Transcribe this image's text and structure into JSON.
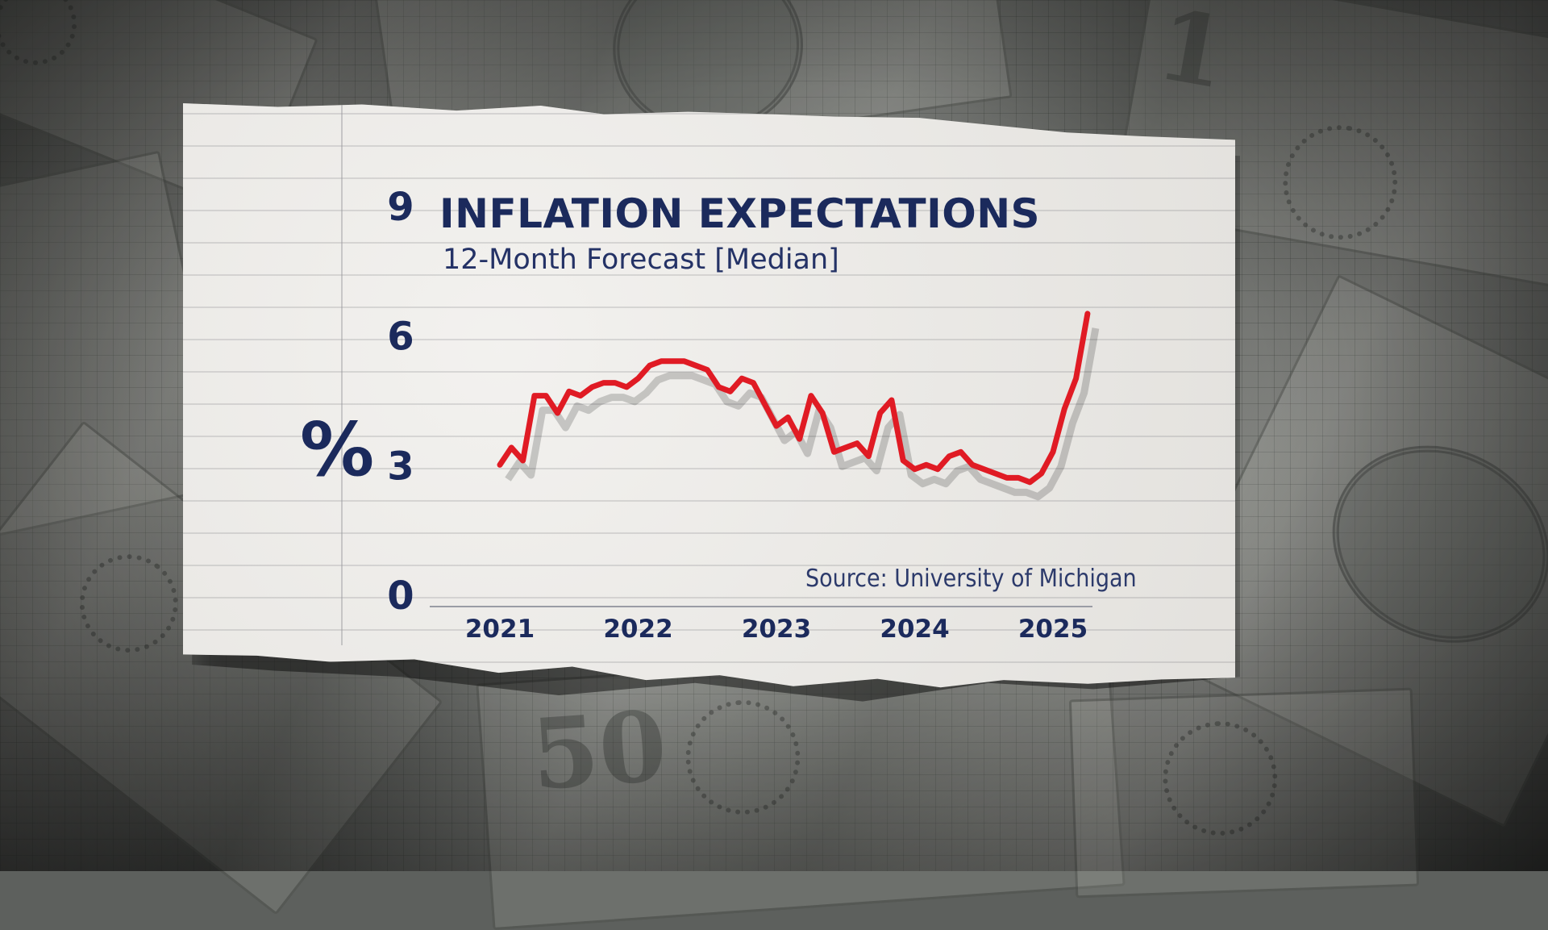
{
  "page": {
    "title": "INFLATION EXPECTATIONS",
    "subtitle": "12-Month Forecast [Median]",
    "unit_symbol": "%",
    "source": "Source: University of Michigan"
  },
  "colors": {
    "navy": "#1b2a5c",
    "line": "#e01b24",
    "paper": "#eceae6"
  },
  "chart_data": {
    "type": "line",
    "title": "INFLATION EXPECTATIONS",
    "subtitle": "12-Month Forecast [Median]",
    "xlabel": "",
    "ylabel": "%",
    "ylim": [
      0,
      9
    ],
    "y_ticks": [
      0,
      3,
      6,
      9
    ],
    "x_ticks": [
      "2021",
      "2022",
      "2023",
      "2024",
      "2025"
    ],
    "xlim": [
      "2021-01",
      "2025-04"
    ],
    "grid": false,
    "series": [
      {
        "color": "#e01b24",
        "x": [
          "2021-01",
          "2021-02",
          "2021-03",
          "2021-04",
          "2021-05",
          "2021-06",
          "2021-07",
          "2021-08",
          "2021-09",
          "2021-10",
          "2021-11",
          "2021-12",
          "2022-01",
          "2022-02",
          "2022-03",
          "2022-04",
          "2022-05",
          "2022-06",
          "2022-07",
          "2022-08",
          "2022-09",
          "2022-10",
          "2022-11",
          "2022-12",
          "2023-01",
          "2023-02",
          "2023-03",
          "2023-04",
          "2023-05",
          "2023-06",
          "2023-07",
          "2023-08",
          "2023-09",
          "2023-10",
          "2023-11",
          "2023-12",
          "2024-01",
          "2024-02",
          "2024-03",
          "2024-04",
          "2024-05",
          "2024-06",
          "2024-07",
          "2024-08",
          "2024-09",
          "2024-10",
          "2024-11",
          "2024-12",
          "2025-01",
          "2025-02",
          "2025-03",
          "2025-04"
        ],
        "y": [
          3.0,
          3.4,
          3.1,
          4.6,
          4.6,
          4.2,
          4.7,
          4.6,
          4.8,
          4.9,
          4.9,
          4.8,
          5.0,
          5.3,
          5.4,
          5.4,
          5.4,
          5.3,
          5.2,
          4.8,
          4.7,
          5.0,
          4.9,
          4.4,
          3.9,
          4.1,
          3.6,
          4.6,
          4.2,
          3.3,
          3.4,
          3.5,
          3.2,
          4.2,
          4.5,
          3.1,
          2.9,
          3.0,
          2.9,
          3.2,
          3.3,
          3.0,
          2.9,
          2.8,
          2.7,
          2.7,
          2.6,
          2.8,
          3.3,
          4.3,
          5.0,
          6.5
        ]
      }
    ]
  }
}
